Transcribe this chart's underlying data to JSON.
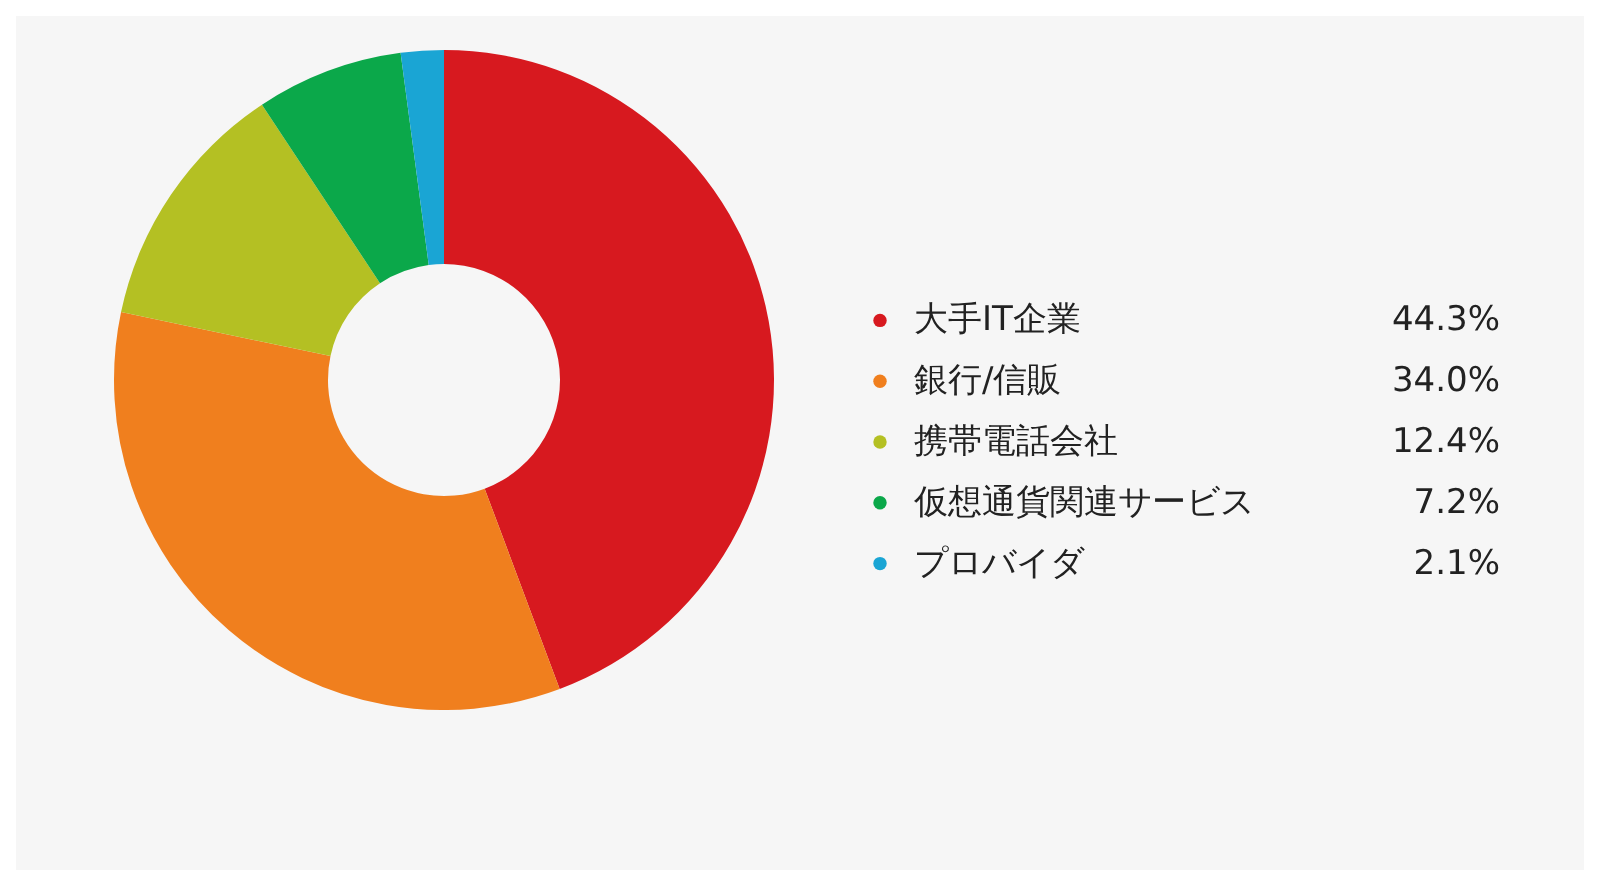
{
  "chart_data": {
    "type": "donut",
    "categories": [
      "大手IT企業",
      "銀行/信販",
      "携帯電話会社",
      "仮想通貨関連サービス",
      "プロバイダ"
    ],
    "values": [
      44.3,
      34.0,
      12.4,
      7.2,
      2.1
    ],
    "value_labels": [
      "44.3%",
      "34.0%",
      "12.4%",
      "7.2%",
      "2.1%"
    ],
    "colors": [
      "#d7191f",
      "#f07f1e",
      "#b4c023",
      "#0ba84a",
      "#1aa5d4"
    ],
    "legend": "right"
  }
}
